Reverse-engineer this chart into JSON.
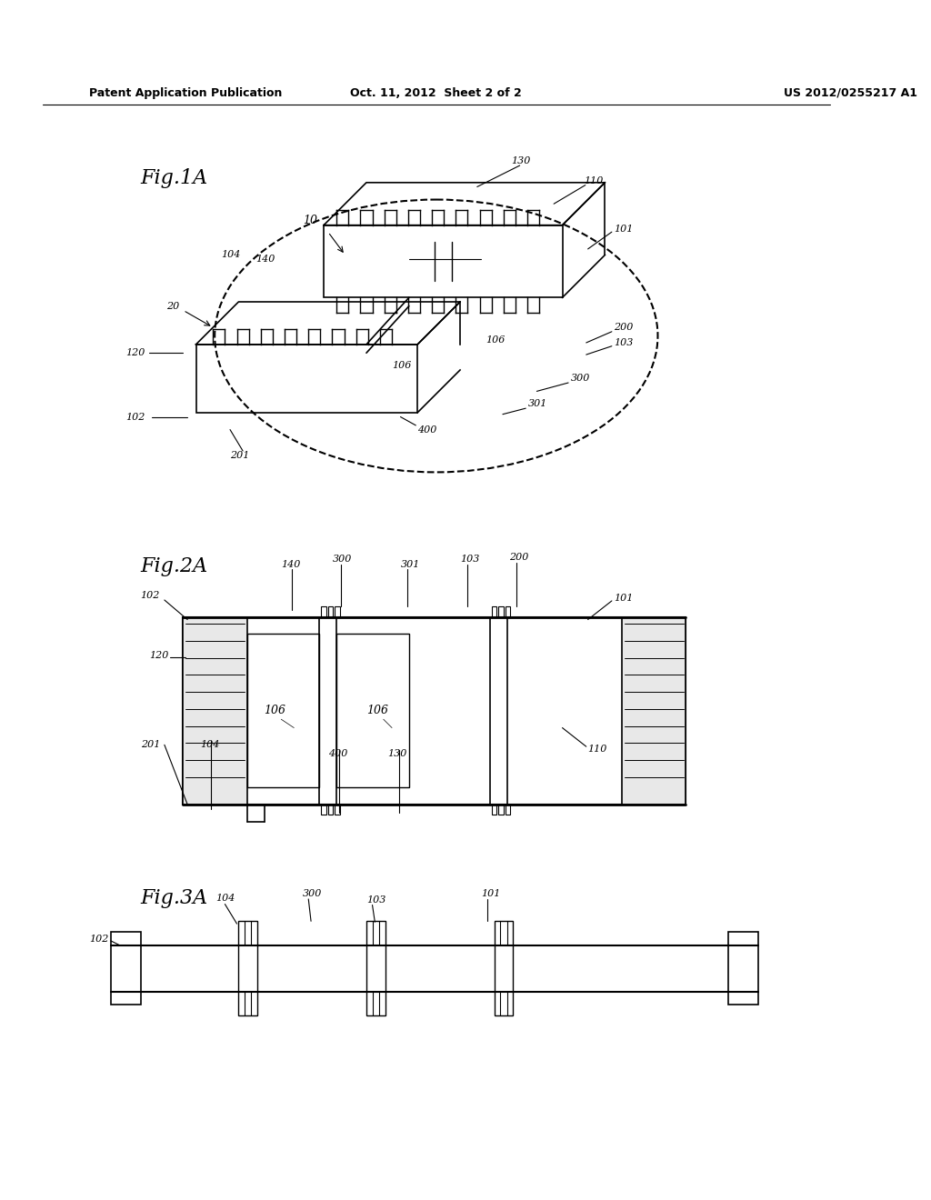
{
  "bg_color": "#ffffff",
  "header_left": "Patent Application Publication",
  "header_center": "Oct. 11, 2012  Sheet 2 of 2",
  "header_right": "US 2012/0255217 A1",
  "fig1_label": "Fig.1A",
  "fig2_label": "Fig.2A",
  "fig3_label": "Fig.3A",
  "line_color": "#000000",
  "text_color": "#000000"
}
